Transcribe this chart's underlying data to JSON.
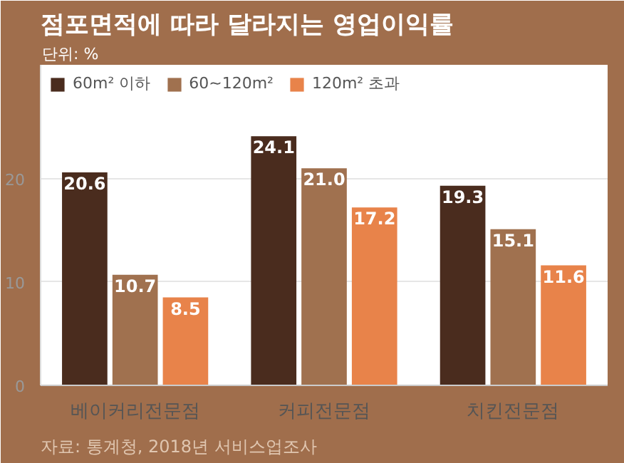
{
  "chart_data": {
    "type": "bar",
    "title": "점포면적에 따라 달라지는 영업이익률",
    "subtitle": "단위: %",
    "categories": [
      "베이커리전문점",
      "커피전문점",
      "치킨전문점"
    ],
    "series": [
      {
        "name": "60m² 이하",
        "color": "#4a2c1e",
        "values": [
          20.6,
          24.1,
          19.3
        ]
      },
      {
        "name": "60~120m²",
        "color": "#a0714f",
        "values": [
          10.7,
          21.0,
          15.1
        ]
      },
      {
        "name": "120m² 초과",
        "color": "#e8834a",
        "values": [
          8.5,
          17.2,
          11.6
        ]
      }
    ],
    "ylim": [
      0,
      31
    ],
    "yticks": [
      0,
      10,
      20
    ],
    "grid": "y",
    "legend": "top left",
    "value_labels": [
      [
        "20.6",
        "24.1",
        "19.3"
      ],
      [
        "10.7",
        "21.0",
        "15.1"
      ],
      [
        "8.5",
        "17.2",
        "11.6"
      ]
    ],
    "annotations": [
      "자료: 통계청, 2018년 서비스업조사"
    ]
  }
}
